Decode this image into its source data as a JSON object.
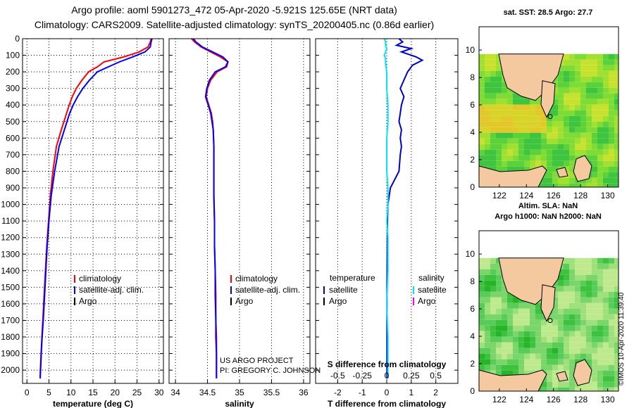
{
  "title_line1": "Argo profile: aoml 5901273_472 05-Apr-2020 -5.921S 125.65E (NRT data)",
  "title_line2": "Climatology: CARS2009. Satellite-adjusted climatology: synTS_20200405.nc (0.86d earlier)",
  "pressure_ticks": [
    0,
    100,
    200,
    300,
    400,
    500,
    600,
    700,
    800,
    900,
    1000,
    1100,
    1200,
    1300,
    1400,
    1500,
    1600,
    1700,
    1800,
    1900,
    2000
  ],
  "legend": {
    "climatology": "climatology",
    "satellite_adj": "satellite-adj. clim.",
    "argo": "Argo",
    "temperature": "temperature",
    "salinity": "salinity",
    "satellite": "satellite"
  },
  "credits": {
    "project": "US ARGO PROJECT",
    "pi": "PI: GREGORY C. JOHNSON"
  },
  "colors": {
    "climatology": "#ff0000",
    "satellite_adj": "#0000ff",
    "argo": "#000000",
    "t_diff": "#0000cc",
    "s_diff": "#00e5ff",
    "s_argo": "#ff00ff"
  },
  "chart_data": [
    {
      "type": "line",
      "name": "temperature",
      "xlabel": "temperature (deg C)",
      "xlim": [
        -1,
        31
      ],
      "ylim": [
        2080,
        0
      ],
      "xticks": [
        0,
        5,
        10,
        15,
        20,
        25,
        30
      ],
      "series": [
        {
          "name": "climatology",
          "color": "#ff0000",
          "x": [
            28.2,
            28.0,
            27.5,
            25.5,
            22.0,
            17.5,
            16.0,
            14.0,
            12.5,
            11.2,
            10.3,
            9.6,
            9.0,
            8.4,
            7.8,
            6.7,
            5.9,
            5.3,
            4.9,
            4.5,
            4.2,
            3.9,
            3.6,
            3.4,
            3.2,
            3.05,
            3.0
          ],
          "y": [
            0,
            20,
            50,
            80,
            110,
            140,
            170,
            200,
            250,
            300,
            350,
            400,
            450,
            500,
            550,
            650,
            800,
            950,
            1100,
            1250,
            1400,
            1550,
            1700,
            1800,
            1900,
            2000,
            2050
          ]
        },
        {
          "name": "satellite-adj. clim.",
          "color": "#0000ff",
          "x": [
            28.4,
            28.2,
            28.0,
            26.8,
            24.0,
            21.0,
            18.5,
            16.0,
            14.2,
            12.7,
            11.5,
            10.5,
            9.7,
            9.1,
            8.5,
            7.3,
            6.3,
            5.5,
            5.0,
            4.6,
            4.3,
            4.0,
            3.7,
            3.45,
            3.25,
            3.1,
            3.0
          ],
          "y": [
            0,
            20,
            50,
            80,
            110,
            140,
            170,
            200,
            250,
            300,
            350,
            400,
            450,
            500,
            550,
            650,
            800,
            950,
            1100,
            1250,
            1400,
            1550,
            1700,
            1800,
            1900,
            2000,
            2050
          ]
        }
      ]
    },
    {
      "type": "line",
      "name": "salinity",
      "xlabel": "salinity",
      "xlim": [
        33.9,
        36.1
      ],
      "ylim": [
        2080,
        0
      ],
      "xticks": [
        34,
        34.5,
        35,
        35.5,
        36
      ],
      "xticklabels": [
        "34",
        "34.5",
        "35",
        "35.5",
        "36"
      ],
      "series": [
        {
          "name": "climatology",
          "color": "#ff0000",
          "x": [
            34.25,
            34.3,
            34.4,
            34.55,
            34.7,
            34.82,
            34.8,
            34.65,
            34.55,
            34.5,
            34.48,
            34.52,
            34.56,
            34.58,
            34.59,
            34.6,
            34.6,
            34.6,
            34.61,
            34.61,
            34.62,
            34.63,
            34.63,
            34.64,
            34.64,
            34.64,
            34.64
          ],
          "y": [
            0,
            20,
            50,
            80,
            110,
            140,
            170,
            200,
            250,
            300,
            350,
            400,
            450,
            500,
            550,
            650,
            800,
            950,
            1100,
            1250,
            1400,
            1550,
            1700,
            1800,
            1900,
            2000,
            2050
          ]
        },
        {
          "name": "satellite-adj. clim.",
          "color": "#0000ff",
          "x": [
            34.28,
            34.32,
            34.42,
            34.58,
            34.74,
            34.82,
            34.78,
            34.62,
            34.53,
            34.49,
            34.47,
            34.51,
            34.55,
            34.57,
            34.59,
            34.6,
            34.6,
            34.6,
            34.61,
            34.61,
            34.62,
            34.62,
            34.63,
            34.63,
            34.64,
            34.64,
            34.64
          ],
          "y": [
            0,
            20,
            50,
            80,
            110,
            140,
            170,
            200,
            250,
            300,
            350,
            400,
            450,
            500,
            550,
            650,
            800,
            950,
            1100,
            1250,
            1400,
            1550,
            1700,
            1800,
            1900,
            2000,
            2050
          ]
        }
      ]
    },
    {
      "type": "line",
      "name": "difference",
      "xlabel": "T difference from climatology",
      "xlabel_top": "S difference from climatology",
      "xlim": [
        -2.9,
        2.9
      ],
      "ylim": [
        2080,
        0
      ],
      "xticks": [
        -2,
        -1,
        0,
        1,
        2
      ],
      "xticklabels": [
        "-2",
        "-1",
        "0",
        "1",
        "2"
      ],
      "sticks": [
        -0.5,
        -0.25,
        0,
        0.25,
        0.5
      ],
      "sticklabels": [
        "-0.5",
        "-0.25",
        "0",
        "0.25",
        "0.5"
      ],
      "series": [
        {
          "name": "temperature satellite",
          "color": "#0000cc",
          "x": [
            0.5,
            0.65,
            0.4,
            1.0,
            0.6,
            1.2,
            1.45,
            1.05,
            0.85,
            0.7,
            0.55,
            0.7,
            0.6,
            0.55,
            0.5,
            0.6,
            0.55,
            0.6,
            0.55,
            0.5,
            0.15,
            0.05,
            0.03,
            0.02,
            0.01,
            0.01,
            0.01,
            0.01,
            0.01
          ],
          "y": [
            0,
            20,
            40,
            60,
            80,
            110,
            130,
            160,
            200,
            250,
            300,
            350,
            400,
            450,
            500,
            550,
            600,
            650,
            700,
            800,
            900,
            1000,
            1100,
            1300,
            1500,
            1700,
            1900,
            2000,
            2050
          ]
        },
        {
          "name": "salinity satellite",
          "color": "#00e5ff",
          "x": [
            -0.1,
            -0.05,
            -0.05,
            0.0,
            -0.05,
            -0.1,
            -0.05,
            -0.05,
            0.0,
            0.0,
            0.05,
            0.05,
            0.0,
            0.0,
            0.0,
            0.05,
            0.05,
            0.0,
            0.05,
            0.05,
            0.0,
            0.05,
            0.05,
            0.05,
            0.05
          ],
          "y": [
            0,
            20,
            40,
            60,
            80,
            100,
            120,
            150,
            200,
            300,
            400,
            500,
            600,
            700,
            800,
            900,
            1000,
            1100,
            1200,
            1400,
            1600,
            1800,
            1900,
            2000,
            2050
          ]
        }
      ]
    }
  ],
  "maps": [
    {
      "title": "sat. SST: 28.5 Argo: 27.7",
      "xticks": [
        "122",
        "124",
        "126",
        "128",
        "130"
      ],
      "yticks": [
        "0",
        "2",
        "4",
        "6",
        "8",
        "10"
      ]
    },
    {
      "title_line1": "Altim. SLA: NaN",
      "title_line2": "Argo h1000: NaN h2000: NaN",
      "xticks": [
        "122",
        "124",
        "126",
        "128",
        "130"
      ],
      "yticks": [
        "0",
        "2",
        "4",
        "6",
        "8",
        "10"
      ]
    }
  ],
  "watermark": "©IMOS 10-Apr-2020 11:39:40"
}
